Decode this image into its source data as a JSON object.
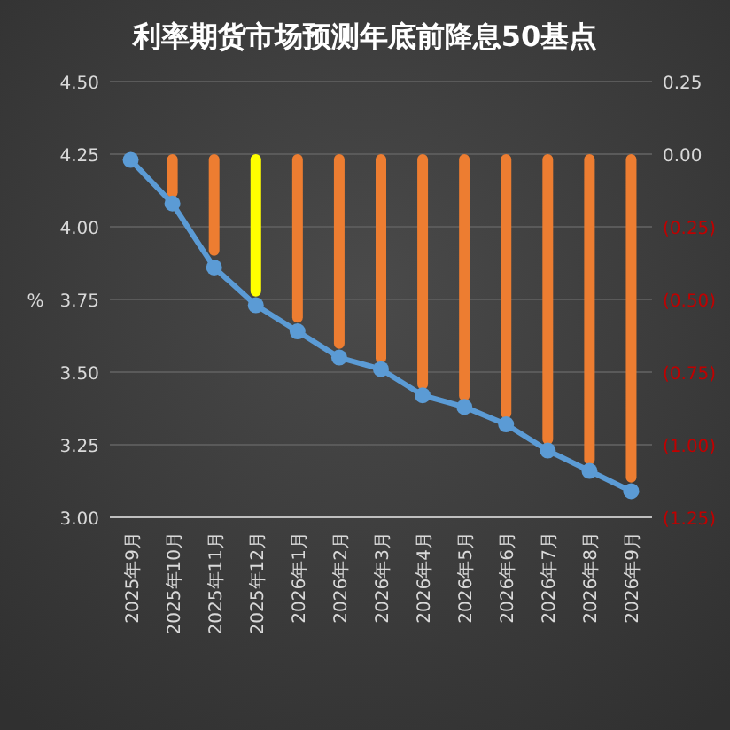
{
  "chart_data": {
    "type": "line",
    "title": "利率期货市场预测年底前降息50基点",
    "ylabel": "%",
    "categories": [
      "2025年9月",
      "2025年10月",
      "2025年11月",
      "2025年12月",
      "2026年1月",
      "2026年2月",
      "2026年3月",
      "2026年4月",
      "2026年5月",
      "2026年6月",
      "2026年7月",
      "2026年8月",
      "2026年9月"
    ],
    "series": [
      {
        "type": "bar",
        "axis": "y2",
        "colors": [
          null,
          "#ed7d31",
          "#ed7d31",
          "#ffff00",
          "#ed7d31",
          "#ed7d31",
          "#ed7d31",
          "#ed7d31",
          "#ed7d31",
          "#ed7d31",
          "#ed7d31",
          "#ed7d31",
          "#ed7d31"
        ],
        "values": [
          null,
          -0.15,
          -0.35,
          -0.49,
          -0.58,
          -0.67,
          -0.72,
          -0.81,
          -0.85,
          -0.91,
          -1.0,
          -1.07,
          -1.13
        ]
      },
      {
        "color": "#5b9bd5",
        "marker": "circle",
        "values": [
          4.23,
          4.08,
          3.86,
          3.73,
          3.64,
          3.55,
          3.51,
          3.42,
          3.38,
          3.32,
          3.23,
          3.16,
          3.09
        ]
      }
    ],
    "ylim": [
      3.0,
      4.5
    ],
    "yticks": [
      {
        "value": 3.0,
        "label": "3.00"
      },
      {
        "value": 3.25,
        "label": "3.25"
      },
      {
        "value": 3.5,
        "label": "3.50"
      },
      {
        "value": 3.75,
        "label": "3.75"
      },
      {
        "value": 4.0,
        "label": "4.00"
      },
      {
        "value": 4.25,
        "label": "4.25"
      },
      {
        "value": 4.5,
        "label": "4.50"
      }
    ],
    "y2lim": [
      -1.25,
      0.25
    ],
    "y2ticks": [
      {
        "value": -1.25,
        "label": "(1.25)"
      },
      {
        "value": -1.0,
        "label": "(1.00)"
      },
      {
        "value": -0.75,
        "label": "(0.75)"
      },
      {
        "value": -0.5,
        "label": "(0.50)"
      },
      {
        "value": -0.25,
        "label": "(0.25)"
      },
      {
        "value": 0,
        "label": "0.00"
      },
      {
        "value": 0.25,
        "label": "0.25"
      }
    ],
    "grid": "y"
  }
}
